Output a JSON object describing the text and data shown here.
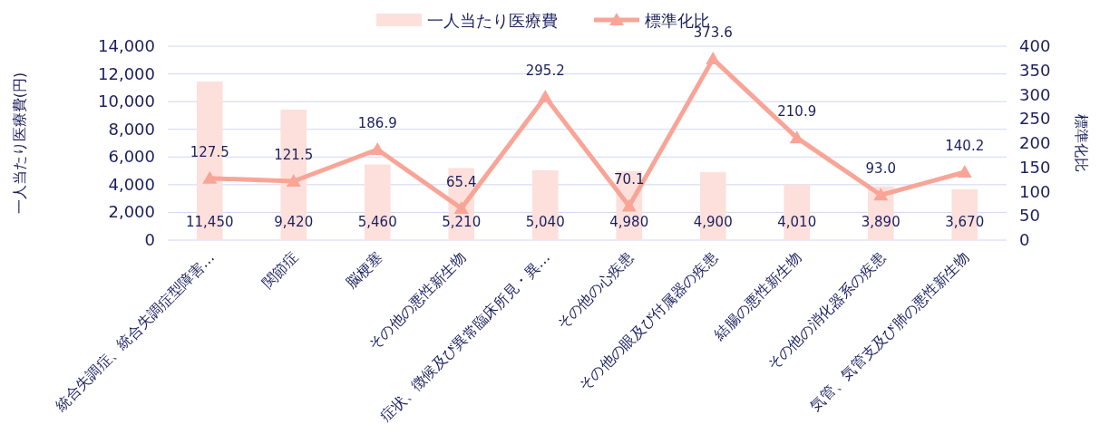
{
  "chart_data": {
    "type": "bar",
    "categories": [
      "統合失調症、統合失調症型障害…",
      "関節症",
      "脳梗塞",
      "その他の悪性新生物",
      "症状、徴候及び異常臨床所見・異…",
      "その他の心疾患",
      "その他の眼及び付属器の疾患",
      "結腸の悪性新生物",
      "その他の消化器系の疾患",
      "気管、気管支及び肺の悪性新生物"
    ],
    "series": [
      {
        "name": "一人当たり医療費",
        "color": "#fde0db",
        "values": [
          11450,
          9420,
          5460,
          5210,
          5040,
          4980,
          4900,
          4010,
          3890,
          3670
        ],
        "value_labels": [
          "11,450",
          "9,420",
          "5,460",
          "5,210",
          "5,040",
          "4,980",
          "4,900",
          "4,010",
          "3,890",
          "3,670"
        ]
      },
      {
        "name": "標準化比",
        "type": "line",
        "axis": "y2",
        "marker": "triangle",
        "color": "#f8a597",
        "values": [
          127.5,
          121.5,
          186.9,
          65.4,
          295.2,
          70.1,
          373.6,
          210.9,
          93.0,
          140.2
        ],
        "value_labels": [
          "127.5",
          "121.5",
          "186.9",
          "65.4",
          "295.2",
          "70.1",
          "373.6",
          "210.9",
          "93.0",
          "140.2"
        ]
      }
    ],
    "ylabel": "一人当たり医療費(円)",
    "y2label": "標準化比",
    "ylim": [
      0,
      14000
    ],
    "yticks": [
      {
        "value": 0,
        "label": "0"
      },
      {
        "value": 2000,
        "label": "2,000"
      },
      {
        "value": 4000,
        "label": "4,000"
      },
      {
        "value": 6000,
        "label": "6,000"
      },
      {
        "value": 8000,
        "label": "8,000"
      },
      {
        "value": 10000,
        "label": "10,000"
      },
      {
        "value": 12000,
        "label": "12,000"
      },
      {
        "value": 14000,
        "label": "14,000"
      }
    ],
    "y2lim": [
      0,
      400
    ],
    "y2ticks": [
      0,
      50,
      100,
      150,
      200,
      250,
      300,
      350,
      400
    ],
    "grid": "y",
    "legend": "top"
  }
}
